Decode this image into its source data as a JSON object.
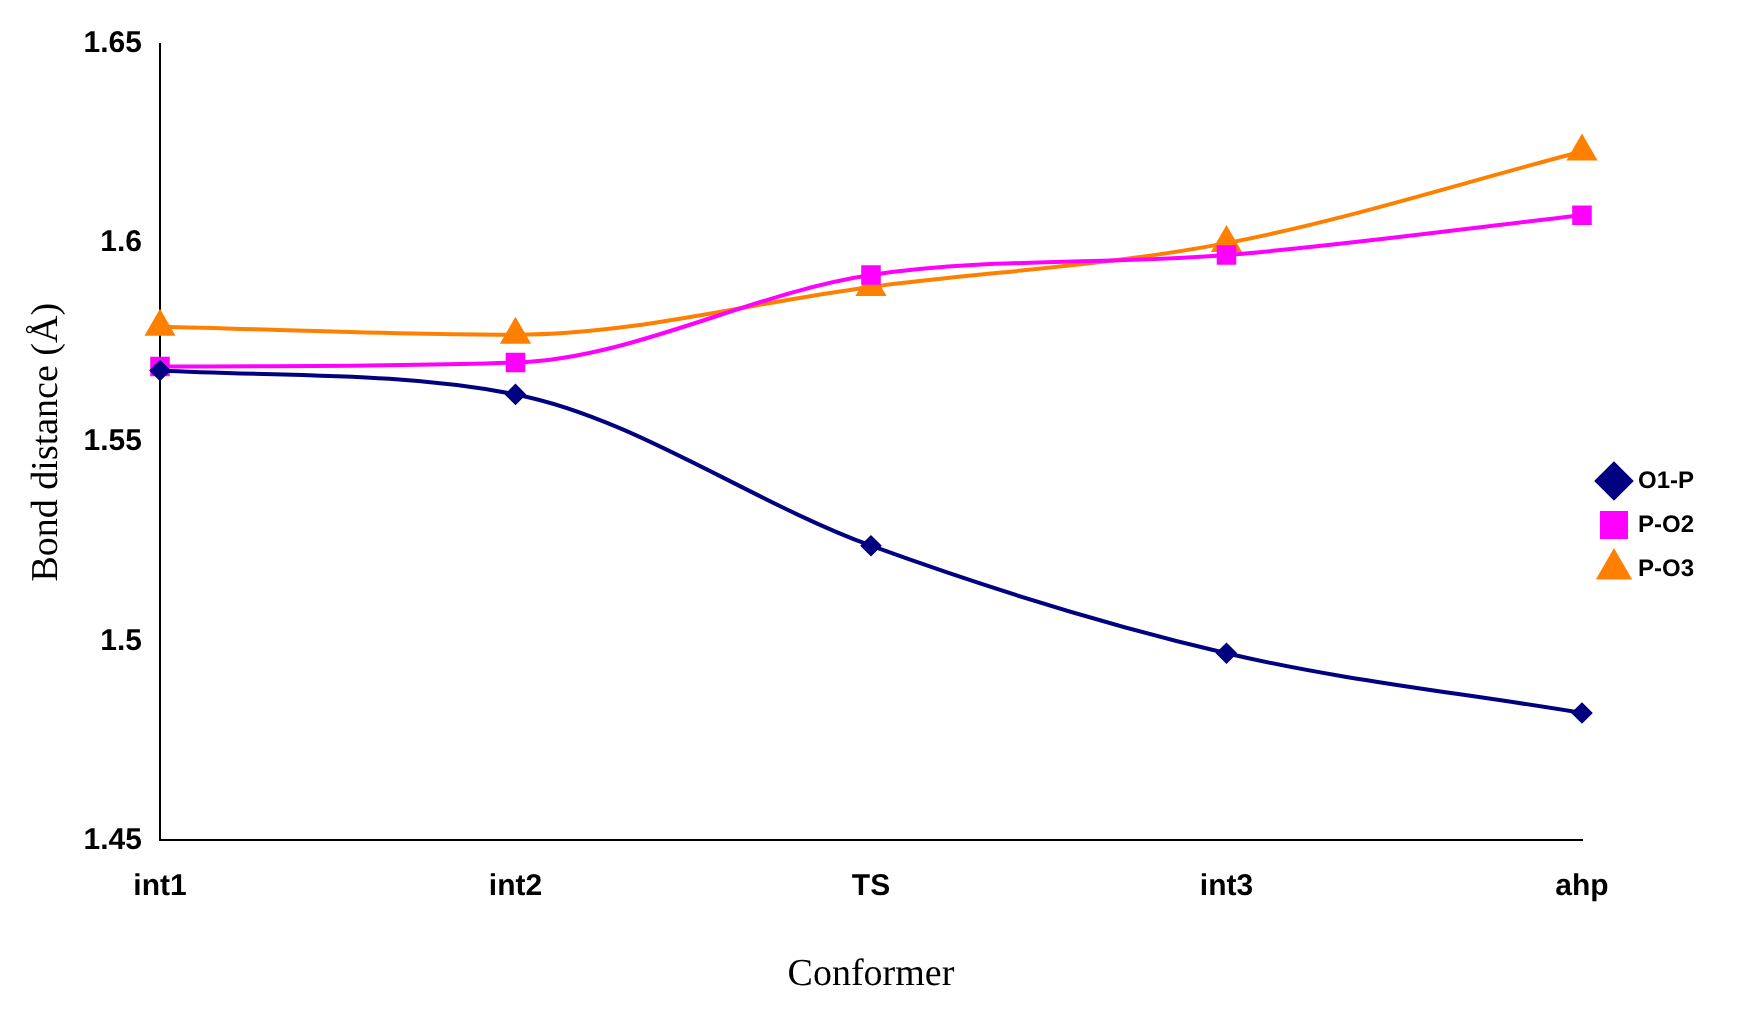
{
  "chart_data": {
    "type": "line",
    "xlabel": "Conformer",
    "ylabel": "Bond distance (Å)",
    "categories": [
      "int1",
      "int2",
      "TS",
      "int3",
      "ahp"
    ],
    "series": [
      {
        "name": "O1-P",
        "color": "#000080",
        "marker": "diamond",
        "values": [
          1.568,
          1.562,
          1.524,
          1.497,
          1.482
        ]
      },
      {
        "name": "P-O2",
        "color": "#ff00ff",
        "marker": "square",
        "values": [
          1.569,
          1.57,
          1.592,
          1.597,
          1.607
        ]
      },
      {
        "name": "P-O3",
        "color": "#ff8000",
        "marker": "triangle",
        "values": [
          1.579,
          1.577,
          1.589,
          1.6,
          1.623
        ]
      }
    ],
    "ylim": [
      1.45,
      1.65
    ],
    "yticks": [
      1.45,
      1.5,
      1.55,
      1.6,
      1.65
    ],
    "grid": false,
    "legend": "right"
  }
}
